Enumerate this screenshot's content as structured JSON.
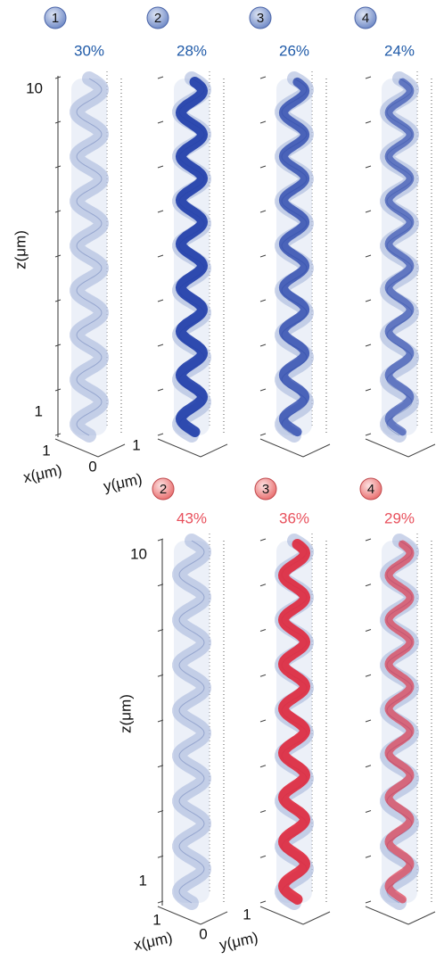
{
  "top": {
    "panels": [
      {
        "badge": "1",
        "percent": "30%"
      },
      {
        "badge": "2",
        "percent": "28%"
      },
      {
        "badge": "3",
        "percent": "26%"
      },
      {
        "badge": "4",
        "percent": "24%"
      }
    ],
    "axes": {
      "z_label": "z(μm)",
      "z_ticks": [
        "10",
        "1"
      ],
      "x_label": "x(μm)",
      "x_ticks": [
        "1",
        "0"
      ],
      "y_label": "y(μm)",
      "y_ticks": [
        "1"
      ]
    }
  },
  "bottom": {
    "panels": [
      {
        "badge": "2",
        "percent": "43%"
      },
      {
        "badge": "3",
        "percent": "36%"
      },
      {
        "badge": "4",
        "percent": "29%"
      }
    ],
    "axes": {
      "z_label": "z(μm)",
      "z_ticks": [
        "10",
        "1"
      ],
      "x_label": "x(μm)",
      "x_ticks": [
        "1",
        "0"
      ],
      "y_label": "y(μm)",
      "y_ticks": [
        "1"
      ]
    }
  }
}
